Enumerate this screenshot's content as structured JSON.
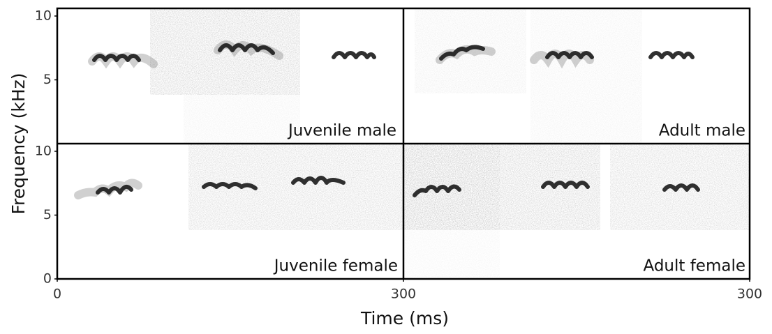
{
  "chart_data": {
    "type": "spectrogram",
    "xlabel": "Time (ms)",
    "ylabel": "Frequency (kHz)",
    "xlim": [
      0,
      300
    ],
    "xticks": [
      0,
      300
    ],
    "ylim": [
      0,
      10.6
    ],
    "yticks": [
      0,
      5,
      10
    ],
    "panels": [
      "Juvenile male",
      "Adult male",
      "Juvenile female",
      "Adult female"
    ]
  }
}
